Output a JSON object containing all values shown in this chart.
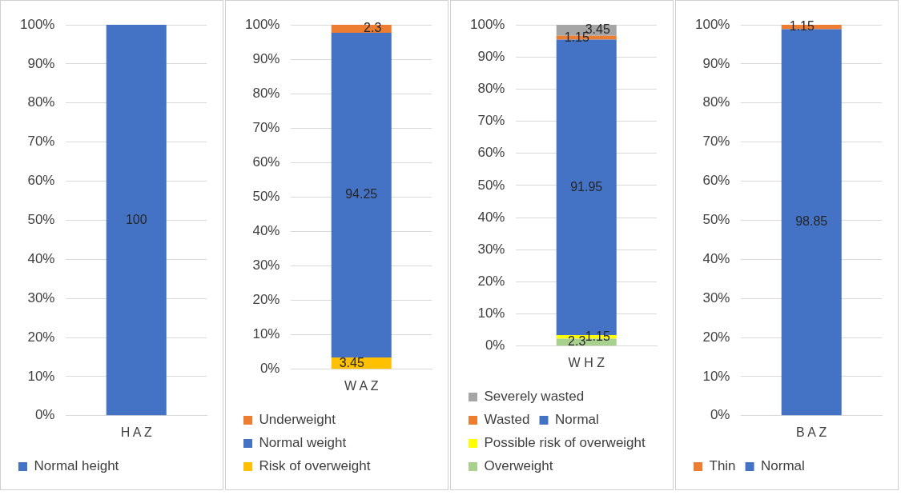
{
  "chart_data": [
    {
      "type": "bar",
      "stacked": true,
      "categories": [
        "H A Z"
      ],
      "series": [
        {
          "name": "Normal height",
          "color": "#4472c4",
          "values": [
            100
          ]
        }
      ],
      "ylim": [
        0,
        100
      ],
      "yticks": [
        {
          "value": 0,
          "label": "0%"
        },
        {
          "value": 10,
          "label": "10%"
        },
        {
          "value": 20,
          "label": "20%"
        },
        {
          "value": 30,
          "label": "30%"
        },
        {
          "value": 40,
          "label": "40%"
        },
        {
          "value": 50,
          "label": "50%"
        },
        {
          "value": 60,
          "label": "60%"
        },
        {
          "value": 70,
          "label": "70%"
        },
        {
          "value": 80,
          "label": "80%"
        },
        {
          "value": 90,
          "label": "90%"
        },
        {
          "value": 100,
          "label": "100%"
        }
      ],
      "grid": "y",
      "legend": "bottom",
      "data_labels": true
    },
    {
      "type": "bar",
      "stacked": true,
      "categories": [
        "W A Z"
      ],
      "series": [
        {
          "name": "Risk of overweight",
          "color": "#ffc000",
          "values": [
            3.45
          ]
        },
        {
          "name": "Normal weight",
          "color": "#4472c4",
          "values": [
            94.25
          ]
        },
        {
          "name": "Underweight",
          "color": "#ed7d31",
          "values": [
            2.3
          ]
        }
      ],
      "ylim": [
        0,
        100
      ],
      "yticks": [
        {
          "value": 0,
          "label": "0%"
        },
        {
          "value": 10,
          "label": "10%"
        },
        {
          "value": 20,
          "label": "20%"
        },
        {
          "value": 30,
          "label": "30%"
        },
        {
          "value": 40,
          "label": "40%"
        },
        {
          "value": 50,
          "label": "50%"
        },
        {
          "value": 60,
          "label": "60%"
        },
        {
          "value": 70,
          "label": "70%"
        },
        {
          "value": 80,
          "label": "80%"
        },
        {
          "value": 90,
          "label": "90%"
        },
        {
          "value": 100,
          "label": "100%"
        }
      ],
      "grid": "y",
      "legend": "bottom",
      "data_labels": true
    },
    {
      "type": "bar",
      "stacked": true,
      "categories": [
        "W H Z"
      ],
      "series": [
        {
          "name": "Overweight",
          "color": "#a9d18e",
          "values": [
            2.3
          ]
        },
        {
          "name": "Possible risk of overweight",
          "color": "#ffff00",
          "values": [
            1.15
          ]
        },
        {
          "name": "Normal",
          "color": "#4472c4",
          "values": [
            91.95
          ]
        },
        {
          "name": "Wasted",
          "color": "#ed7d31",
          "values": [
            1.15
          ]
        },
        {
          "name": "Severely wasted",
          "color": "#a5a5a5",
          "values": [
            3.45
          ]
        }
      ],
      "ylim": [
        0,
        100
      ],
      "yticks": [
        {
          "value": 0,
          "label": "0%"
        },
        {
          "value": 10,
          "label": "10%"
        },
        {
          "value": 20,
          "label": "20%"
        },
        {
          "value": 30,
          "label": "30%"
        },
        {
          "value": 40,
          "label": "40%"
        },
        {
          "value": 50,
          "label": "50%"
        },
        {
          "value": 60,
          "label": "60%"
        },
        {
          "value": 70,
          "label": "70%"
        },
        {
          "value": 80,
          "label": "80%"
        },
        {
          "value": 90,
          "label": "90%"
        },
        {
          "value": 100,
          "label": "100%"
        }
      ],
      "grid": "y",
      "legend": "bottom",
      "data_labels": true
    },
    {
      "type": "bar",
      "stacked": true,
      "categories": [
        "B A Z"
      ],
      "series": [
        {
          "name": "Normal",
          "color": "#4472c4",
          "values": [
            98.85
          ]
        },
        {
          "name": "Thin",
          "color": "#ed7d31",
          "values": [
            1.15
          ]
        }
      ],
      "ylim": [
        0,
        100
      ],
      "yticks": [
        {
          "value": 0,
          "label": "0%"
        },
        {
          "value": 10,
          "label": "10%"
        },
        {
          "value": 20,
          "label": "20%"
        },
        {
          "value": 30,
          "label": "30%"
        },
        {
          "value": 40,
          "label": "40%"
        },
        {
          "value": 50,
          "label": "50%"
        },
        {
          "value": 60,
          "label": "60%"
        },
        {
          "value": 70,
          "label": "70%"
        },
        {
          "value": 80,
          "label": "80%"
        },
        {
          "value": 90,
          "label": "90%"
        },
        {
          "value": 100,
          "label": "100%"
        }
      ],
      "grid": "y",
      "legend": "bottom",
      "data_labels": true
    }
  ]
}
